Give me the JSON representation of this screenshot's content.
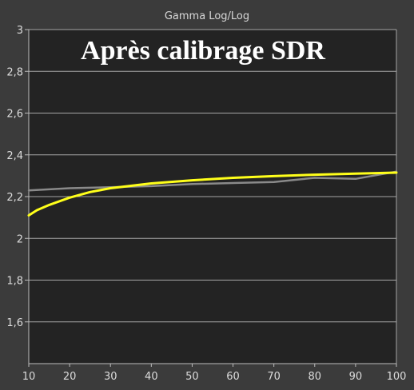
{
  "colors": {
    "page_bg": "#3b3b3b",
    "plot_bg": "#232323",
    "grid": "#a6a6a6",
    "axis": "#bdbdbd",
    "text": "#dcdcdc",
    "series_measured": "#ffff1a",
    "series_reference": "#8a8a8a"
  },
  "chart_data": {
    "type": "line",
    "title": "Gamma Log/Log",
    "overlay_title": "Après calibrage SDR",
    "xlabel": "",
    "ylabel": "",
    "xlim": [
      10,
      100
    ],
    "ylim": [
      1.4,
      3.0
    ],
    "x_ticks": [
      10,
      20,
      30,
      40,
      50,
      60,
      70,
      80,
      90,
      100
    ],
    "x_tick_labels": [
      "10",
      "20",
      "30",
      "40",
      "50",
      "60",
      "70",
      "80",
      "90",
      "100"
    ],
    "y_ticks": [
      1.6,
      1.8,
      2.0,
      2.2,
      2.4,
      2.6,
      2.8,
      3.0
    ],
    "y_tick_labels": [
      "1,6",
      "1,8",
      "2",
      "2,2",
      "2,4",
      "2,6",
      "2,8",
      "3"
    ],
    "grid": true,
    "legend": "none",
    "series": [
      {
        "color": "#8a8a8a",
        "x": [
          10,
          20,
          30,
          40,
          50,
          60,
          70,
          80,
          90,
          100
        ],
        "y": [
          2.23,
          2.24,
          2.245,
          2.25,
          2.26,
          2.265,
          2.27,
          2.29,
          2.285,
          2.32
        ]
      },
      {
        "color": "#ffff1a",
        "x": [
          10,
          12,
          15,
          20,
          25,
          30,
          40,
          50,
          60,
          70,
          80,
          90,
          100
        ],
        "y": [
          2.11,
          2.135,
          2.16,
          2.195,
          2.222,
          2.24,
          2.263,
          2.278,
          2.29,
          2.298,
          2.305,
          2.31,
          2.315
        ]
      }
    ]
  }
}
